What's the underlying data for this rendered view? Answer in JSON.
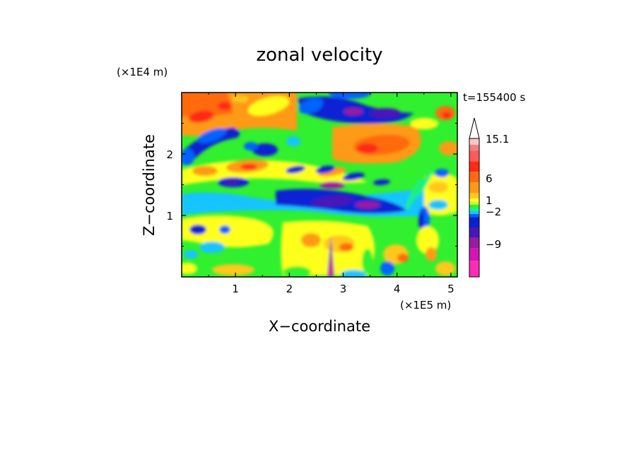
{
  "chart_data": {
    "type": "heatmap",
    "title": "zonal velocity",
    "xlabel": "X−coordinate",
    "ylabel": "Z−coordinate",
    "x_unit": "(×1E5 m)",
    "y_unit": "(×1E4 m)",
    "time_label": "t=155400 s",
    "xlim": [
      0,
      5.12
    ],
    "ylim": [
      0,
      3.0
    ],
    "x_ticks": [
      {
        "value": 1,
        "label": "1"
      },
      {
        "value": 2,
        "label": "2"
      },
      {
        "value": 3,
        "label": "3"
      },
      {
        "value": 4,
        "label": "4"
      },
      {
        "value": 5,
        "label": "5"
      }
    ],
    "y_ticks": [
      {
        "value": 1,
        "label": "1"
      },
      {
        "value": 2,
        "label": "2"
      }
    ],
    "colorbar": {
      "colors": [
        "#ff2bb4",
        "#d414b4",
        "#9a1aa0",
        "#4a16b8",
        "#0a20d2",
        "#0064ff",
        "#16c4ff",
        "#1ef080",
        "#30f030",
        "#d2f52a",
        "#ffff1e",
        "#ffc81e",
        "#ff9a18",
        "#ff6a10",
        "#ff2a14",
        "#ff5a5a",
        "#f08080",
        "#ffc6c6"
      ],
      "labels": [
        "15.1",
        "6",
        "1",
        "−2",
        "−9"
      ],
      "overflow_arrow": "top"
    }
  }
}
